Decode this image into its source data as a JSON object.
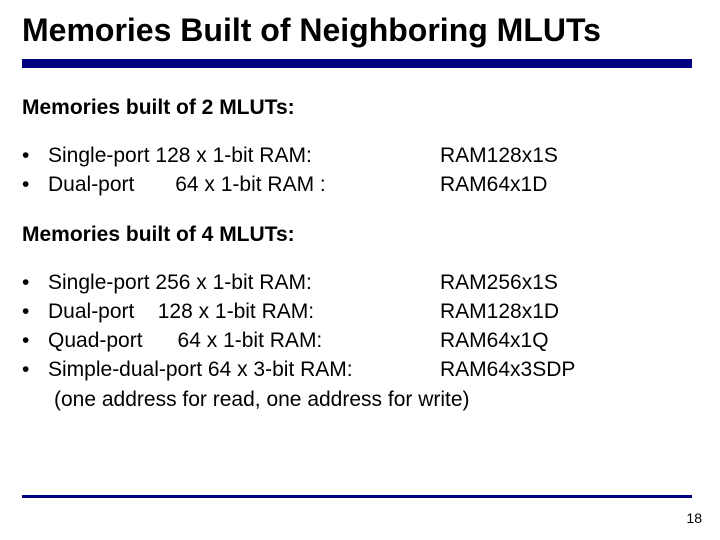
{
  "title": "Memories Built of Neighboring MLUTs",
  "section1": {
    "header": "Memories built of 2 MLUTs:",
    "items": [
      {
        "desc": "Single-port 128 x 1-bit RAM:",
        "code": "RAM128x1S"
      },
      {
        "desc": "Dual-port       64 x 1-bit RAM :",
        "code": "RAM64x1D"
      }
    ]
  },
  "section2": {
    "header": "Memories built of 4 MLUTs:",
    "items": [
      {
        "desc": "Single-port 256 x 1-bit RAM:",
        "code": "RAM256x1S"
      },
      {
        "desc": "Dual-port    128 x 1-bit RAM:",
        "code": "RAM128x1D"
      },
      {
        "desc": "Quad-port      64 x 1-bit RAM:",
        "code": "RAM64x1Q"
      },
      {
        "desc": "Simple-dual-port 64 x 3-bit RAM:",
        "code": "RAM64x3SDP"
      }
    ],
    "note": "(one address for read, one address for write)"
  },
  "bullet_char": "•",
  "page_number": "18",
  "colors": {
    "rule": "#000080",
    "text": "#000000",
    "background": "#ffffff"
  },
  "typography": {
    "title_fontsize": 32,
    "body_fontsize": 21,
    "pagenum_fontsize": 14,
    "font_family": "Arial"
  }
}
